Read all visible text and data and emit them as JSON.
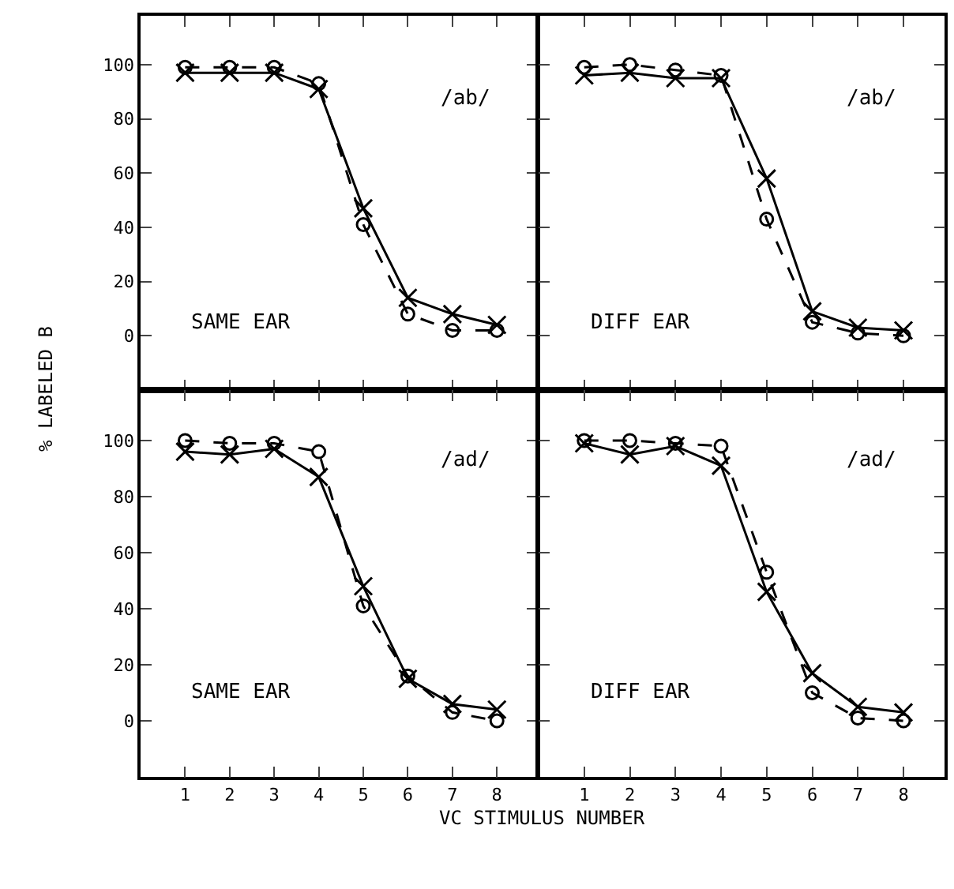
{
  "chart_data": [
    {
      "type": "line",
      "ylabel": "% LABELED B",
      "x": [
        1,
        2,
        3,
        4,
        5,
        6,
        7,
        8
      ],
      "xlim": [
        0,
        8.9
      ],
      "xticks": [
        1,
        2,
        3,
        4,
        5,
        6,
        7,
        8
      ],
      "ylim": [
        -20,
        118
      ],
      "yticks": [
        0,
        20,
        40,
        60,
        80,
        100
      ],
      "tick_labels": "y",
      "annotations": [
        "/ab/",
        "SAME EAR"
      ],
      "series": [
        {
          "color": "#000000",
          "marker": "circle",
          "line_style": "dashed",
          "values": [
            99,
            99,
            99,
            93,
            41,
            8,
            2,
            2
          ]
        },
        {
          "color": "#000000",
          "marker": "cross",
          "line_style": "solid",
          "values": [
            97,
            97,
            97,
            91,
            47,
            14,
            8,
            4
          ]
        }
      ]
    },
    {
      "type": "line",
      "x": [
        1,
        2,
        3,
        4,
        5,
        6,
        7,
        8
      ],
      "xlim": [
        0,
        8.9
      ],
      "xticks": [
        1,
        2,
        3,
        4,
        5,
        6,
        7,
        8
      ],
      "ylim": [
        -20,
        118
      ],
      "yticks": [
        0,
        20,
        40,
        60,
        80,
        100
      ],
      "tick_labels": false,
      "annotations": [
        "/ab/",
        "DIFF EAR"
      ],
      "series": [
        {
          "color": "#000000",
          "marker": "circle",
          "line_style": "dashed",
          "values": [
            99,
            100,
            98,
            96,
            43,
            5,
            1,
            0
          ]
        },
        {
          "color": "#000000",
          "marker": "cross",
          "line_style": "solid",
          "values": [
            96,
            97,
            95,
            95,
            58,
            9,
            3,
            2
          ]
        }
      ]
    },
    {
      "type": "line",
      "xlabel": "VC STIMULUS NUMBER",
      "x": [
        1,
        2,
        3,
        4,
        5,
        6,
        7,
        8
      ],
      "xlim": [
        0,
        8.9
      ],
      "xticks": [
        1,
        2,
        3,
        4,
        5,
        6,
        7,
        8
      ],
      "ylim": [
        -20,
        118
      ],
      "yticks": [
        0,
        20,
        40,
        60,
        80,
        100
      ],
      "annotations": [
        "/ad/",
        "SAME EAR"
      ],
      "series": [
        {
          "color": "#000000",
          "marker": "circle",
          "line_style": "dashed",
          "values": [
            100,
            99,
            99,
            96,
            41,
            16,
            3,
            0
          ]
        },
        {
          "color": "#000000",
          "marker": "cross",
          "line_style": "solid",
          "values": [
            96,
            95,
            97,
            87,
            48,
            15,
            6,
            4
          ]
        }
      ]
    },
    {
      "type": "line",
      "x": [
        1,
        2,
        3,
        4,
        5,
        6,
        7,
        8
      ],
      "xlim": [
        0,
        8.9
      ],
      "xticks": [
        1,
        2,
        3,
        4,
        5,
        6,
        7,
        8
      ],
      "ylim": [
        -20,
        118
      ],
      "yticks": [
        0,
        20,
        40,
        60,
        80,
        100
      ],
      "tick_labels": "x",
      "annotations": [
        "/ad/",
        "DIFF EAR"
      ],
      "series": [
        {
          "color": "#000000",
          "marker": "circle",
          "line_style": "dashed",
          "values": [
            100,
            100,
            99,
            98,
            53,
            10,
            1,
            0
          ]
        },
        {
          "color": "#000000",
          "marker": "cross",
          "line_style": "solid",
          "values": [
            99,
            95,
            98,
            91,
            46,
            17,
            5,
            3
          ]
        }
      ]
    }
  ]
}
